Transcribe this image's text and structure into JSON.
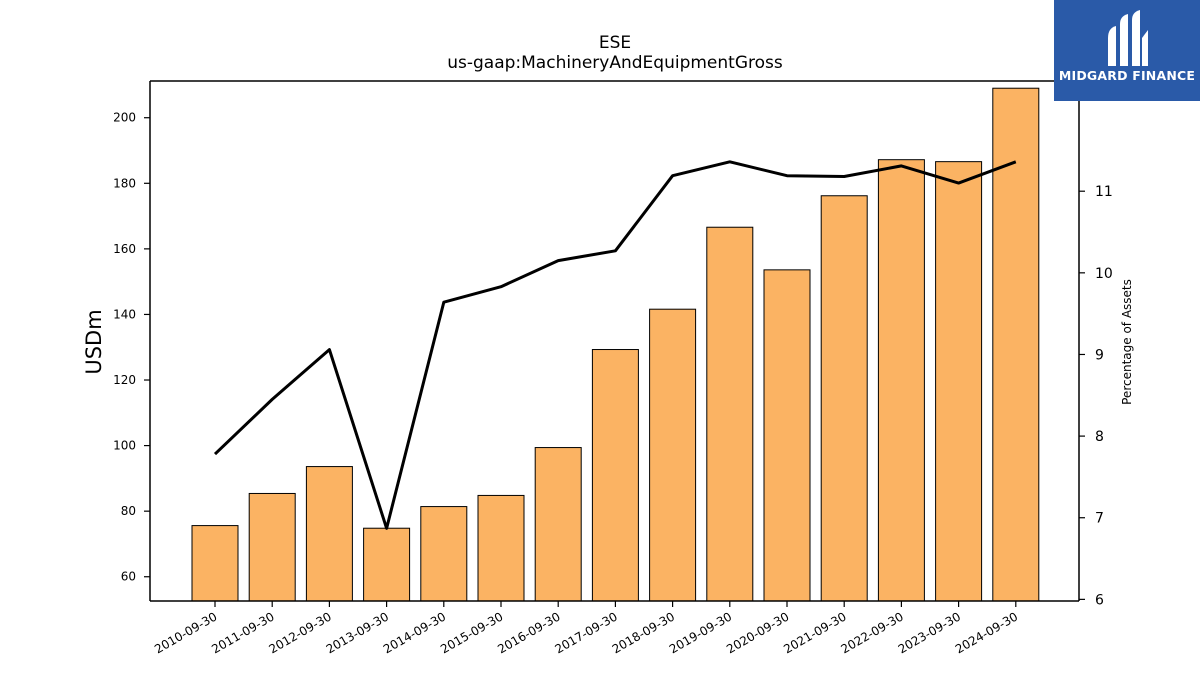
{
  "chart_data": {
    "type": "bar",
    "title": "ESE",
    "subtitle": "us-gaap:MachineryAndEquipmentGross",
    "ylabel": "USDm",
    "ylabel_right": "Percentage of Assets",
    "categories": [
      "2010-09-30",
      "2011-09-30",
      "2012-09-30",
      "2013-09-30",
      "2014-09-30",
      "2015-09-30",
      "2016-09-30",
      "2017-09-30",
      "2018-09-30",
      "2019-09-30",
      "2020-09-30",
      "2021-09-30",
      "2022-09-30",
      "2023-09-30",
      "2024-09-30"
    ],
    "series": [
      {
        "axis": "left",
        "type": "bar",
        "color": "#fbb363",
        "values": [
          75.6,
          85.4,
          93.6,
          74.8,
          81.4,
          84.8,
          99.4,
          129.3,
          141.6,
          166.6,
          153.6,
          176.2,
          187.2,
          186.6,
          209.0
        ]
      },
      {
        "axis": "right",
        "type": "line",
        "color": "#000000",
        "values": [
          7.78,
          8.45,
          9.06,
          6.87,
          9.64,
          9.83,
          10.15,
          10.27,
          11.19,
          11.36,
          11.19,
          11.18,
          11.31,
          11.1,
          11.36
        ]
      }
    ],
    "ylim": [
      52.6,
      211.2
    ],
    "yticks": [
      60,
      80,
      100,
      120,
      140,
      160,
      180,
      200
    ],
    "ylim_right": [
      5.98,
      12.35
    ],
    "yticks_right": [
      6,
      7,
      8,
      9,
      10,
      11
    ],
    "grid": false,
    "bar_edge_color": "#000000"
  },
  "logo": {
    "text": "MIDGARD FINANCE",
    "background": "#2a5aa8",
    "icon": "midgard-logo-icon"
  }
}
